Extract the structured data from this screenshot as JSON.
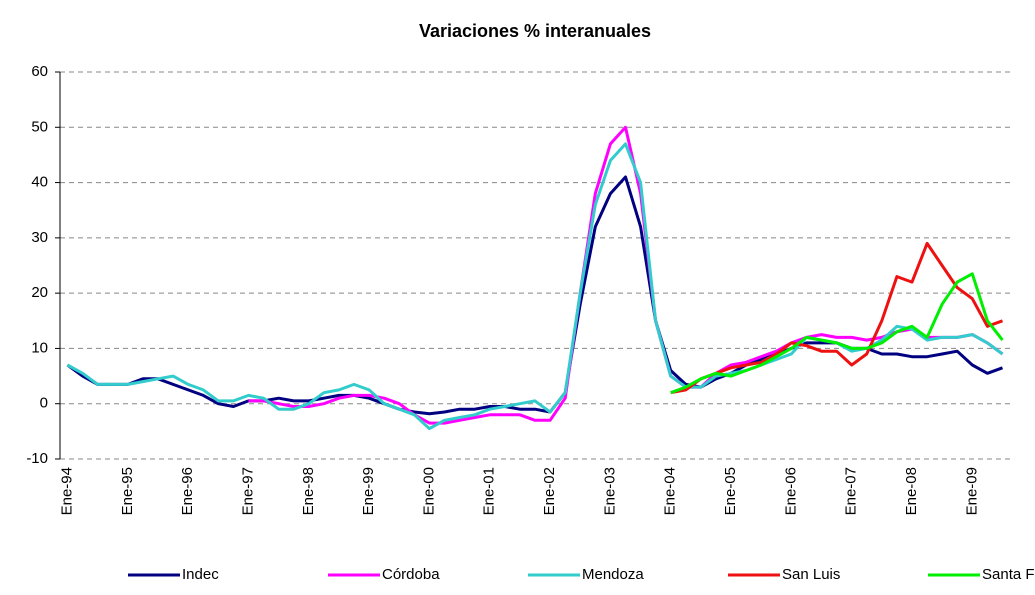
{
  "chart_data": {
    "type": "line",
    "title": "Variaciones % interanuales",
    "categories": [
      "Ene-94",
      null,
      null,
      null,
      "Ene-95",
      null,
      null,
      null,
      "Ene-96",
      null,
      null,
      null,
      "Ene-97",
      null,
      null,
      null,
      "Ene-98",
      null,
      null,
      null,
      "Ene-99",
      null,
      null,
      null,
      "Ene-00",
      null,
      null,
      null,
      "Ene-01",
      null,
      null,
      null,
      "Ene-02",
      null,
      null,
      null,
      "Ene-03",
      null,
      null,
      null,
      "Ene-04",
      null,
      null,
      null,
      "Ene-05",
      null,
      null,
      null,
      "Ene-06",
      null,
      null,
      null,
      "Ene-07",
      null,
      null,
      null,
      "Ene-08",
      null,
      null,
      null,
      "Ene-09",
      null,
      null
    ],
    "series": [
      {
        "name": "Indec",
        "color": "#000080",
        "values": [
          7,
          5,
          3.5,
          3.5,
          3.5,
          4.5,
          4.5,
          3.5,
          2.5,
          1.5,
          0,
          -0.5,
          0.5,
          0.5,
          1,
          0.5,
          0.5,
          1,
          1.5,
          1.5,
          1,
          0,
          -1,
          -1.5,
          -1.8,
          -1.5,
          -1,
          -1,
          -0.5,
          -0.5,
          -1,
          -1,
          -1.5,
          2,
          18,
          32,
          38,
          41,
          32,
          15,
          6,
          3.5,
          3,
          4.5,
          5.5,
          7,
          8,
          9,
          10,
          11,
          11,
          11,
          10,
          10,
          9,
          9,
          8.5,
          8.5,
          9,
          9.5,
          7,
          5.5,
          6.5
        ]
      },
      {
        "name": "Córdoba",
        "color": "#ff00ff",
        "values": [
          null,
          null,
          null,
          null,
          null,
          null,
          null,
          null,
          null,
          null,
          null,
          null,
          0.5,
          0.5,
          0,
          -0.5,
          -0.5,
          0,
          1,
          1.5,
          1.5,
          1,
          0,
          -2,
          -3.5,
          -3.5,
          -3,
          -2.5,
          -2,
          -2,
          -2,
          -3,
          -3,
          1,
          20,
          38,
          47,
          50,
          38,
          15,
          5,
          3,
          3,
          5.5,
          7,
          7.5,
          8.5,
          9.5,
          11,
          12,
          12.5,
          12,
          12,
          11.5,
          12,
          13,
          13.5,
          12,
          12,
          12,
          12.5,
          11,
          9
        ]
      },
      {
        "name": "Mendoza",
        "color": "#33cccc",
        "values": [
          7,
          5.5,
          3.5,
          3.5,
          3.5,
          4,
          4.5,
          5,
          3.5,
          2.5,
          0.5,
          0.5,
          1.5,
          1,
          -1,
          -1,
          0,
          2,
          2.5,
          3.5,
          2.5,
          0,
          -1,
          -2,
          -4.5,
          -3,
          -2.5,
          -2,
          -1,
          -0.5,
          0,
          0.5,
          -1.5,
          2,
          20,
          36,
          44,
          47,
          40,
          15,
          5,
          3,
          3,
          5,
          5.5,
          6,
          7,
          8,
          9,
          12,
          11.5,
          11,
          9.5,
          10,
          11.5,
          14,
          13.5,
          11.5,
          12,
          12,
          12.5,
          11,
          9
        ]
      },
      {
        "name": "San Luis",
        "color": "#ee1111",
        "values": [
          null,
          null,
          null,
          null,
          null,
          null,
          null,
          null,
          null,
          null,
          null,
          null,
          null,
          null,
          null,
          null,
          null,
          null,
          null,
          null,
          null,
          null,
          null,
          null,
          null,
          null,
          null,
          null,
          null,
          null,
          null,
          null,
          null,
          null,
          null,
          null,
          null,
          null,
          null,
          null,
          2,
          2.5,
          4.5,
          5.5,
          6.5,
          7,
          7.5,
          9,
          11,
          10.5,
          9.5,
          9.5,
          7,
          9,
          15,
          23,
          22,
          29,
          25,
          21,
          19,
          14,
          15
        ]
      },
      {
        "name": "Santa Fe",
        "color": "#00ee00",
        "values": [
          null,
          null,
          null,
          null,
          null,
          null,
          null,
          null,
          null,
          null,
          null,
          null,
          null,
          null,
          null,
          null,
          null,
          null,
          null,
          null,
          null,
          null,
          null,
          null,
          null,
          null,
          null,
          null,
          null,
          null,
          null,
          null,
          null,
          null,
          null,
          null,
          null,
          null,
          null,
          null,
          2,
          3,
          4.5,
          5.5,
          5,
          6,
          7,
          8.5,
          10,
          12,
          11.5,
          11,
          10,
          10,
          11,
          13,
          14,
          12,
          18,
          22,
          23.5,
          15,
          11.5
        ]
      }
    ],
    "ylim": [
      -10,
      60
    ],
    "yticks": [
      -10,
      0,
      10,
      20,
      30,
      40,
      50,
      60
    ],
    "grid": true,
    "legend": "bottom"
  }
}
